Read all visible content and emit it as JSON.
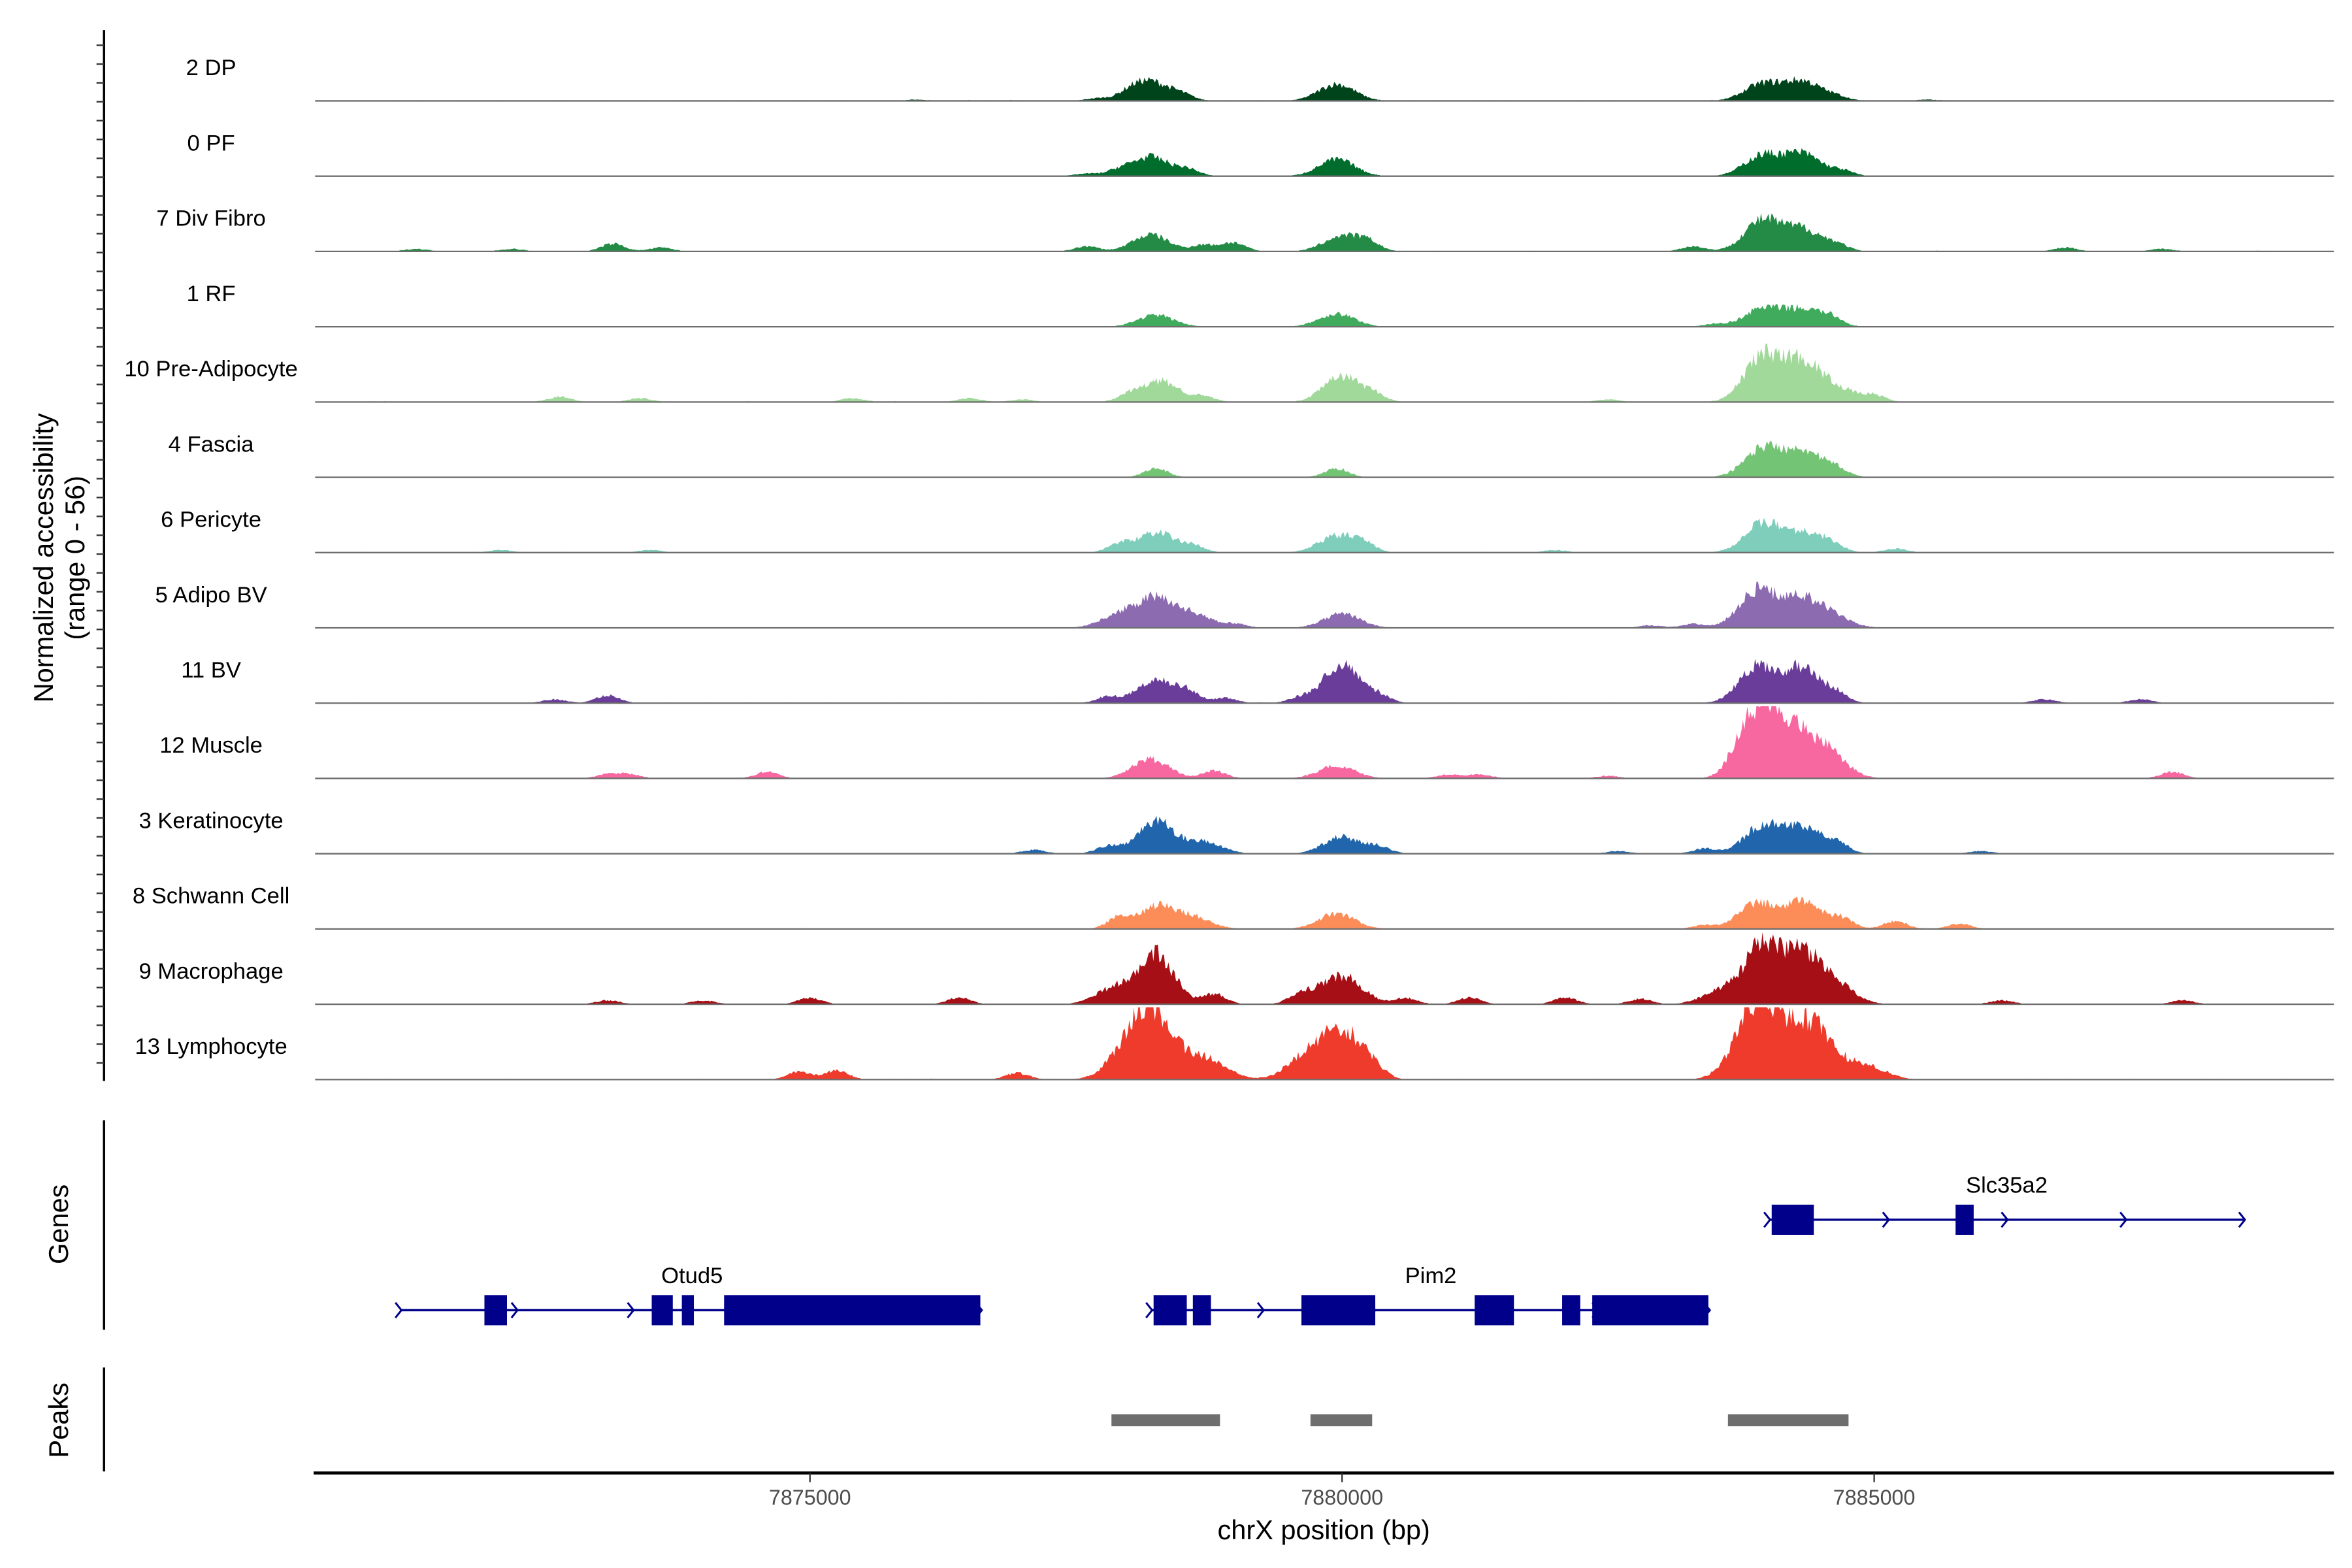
{
  "chart_data": {
    "type": "area",
    "title": "",
    "ylabel": "Normalized accessibility",
    "ylabel2": "(range 0 - 56)",
    "ylim": [
      0,
      56
    ],
    "xlabel": "chrX position (bp)",
    "xlim": [
      7870350,
      7889320
    ],
    "xticks": [
      {
        "value": 7875000,
        "label": "7875000"
      },
      {
        "value": 7880000,
        "label": "7880000"
      },
      {
        "value": 7885000,
        "label": "7885000"
      }
    ],
    "tracks": [
      {
        "name": "2 DP",
        "color": "#00441b",
        "peaks": [
          [
            7878200,
            15
          ],
          [
            7878000,
            4
          ],
          [
            7878500,
            4
          ],
          [
            7879950,
            13
          ],
          [
            7883950,
            13
          ],
          [
            7884330,
            15
          ],
          [
            7884650,
            3
          ],
          [
            7877700,
            2
          ],
          [
            7876000,
            1
          ],
          [
            7885500,
            1
          ]
        ]
      },
      {
        "name": "0 PF",
        "color": "#006d2c",
        "peaks": [
          [
            7878200,
            15
          ],
          [
            7877900,
            4
          ],
          [
            7878550,
            5
          ],
          [
            7879950,
            13
          ],
          [
            7883950,
            16
          ],
          [
            7884330,
            17
          ],
          [
            7884700,
            4
          ],
          [
            7877600,
            2
          ]
        ]
      },
      {
        "name": "7 Div Fibro",
        "color": "#238b45",
        "peaks": [
          [
            7878200,
            13
          ],
          [
            7877600,
            4
          ],
          [
            7878700,
            5
          ],
          [
            7879000,
            4
          ],
          [
            7880000,
            12
          ],
          [
            7880250,
            6
          ],
          [
            7883950,
            24
          ],
          [
            7884330,
            17
          ],
          [
            7884650,
            5
          ],
          [
            7883300,
            4
          ],
          [
            7873150,
            6
          ],
          [
            7873600,
            3
          ],
          [
            7872200,
            2
          ],
          [
            7871300,
            2
          ],
          [
            7878950,
            3
          ],
          [
            7886800,
            3
          ],
          [
            7887700,
            2
          ]
        ]
      },
      {
        "name": "1 RF",
        "color": "#41ab5d",
        "peaks": [
          [
            7878250,
            9
          ],
          [
            7879950,
            10
          ],
          [
            7883950,
            14
          ],
          [
            7884330,
            13
          ],
          [
            7884600,
            6
          ],
          [
            7883500,
            2
          ]
        ]
      },
      {
        "name": "10 Pre-Adipocyte",
        "color": "#a1d99b",
        "peaks": [
          [
            7878300,
            16
          ],
          [
            7878000,
            5
          ],
          [
            7878700,
            4
          ],
          [
            7880000,
            20
          ],
          [
            7880300,
            5
          ],
          [
            7883950,
            35
          ],
          [
            7884320,
            30
          ],
          [
            7884650,
            10
          ],
          [
            7885000,
            5
          ],
          [
            7872650,
            4
          ],
          [
            7873400,
            3
          ],
          [
            7876500,
            3
          ],
          [
            7875400,
            3
          ],
          [
            7882500,
            2
          ],
          [
            7877000,
            2
          ]
        ]
      },
      {
        "name": "4 Fascia",
        "color": "#74c476",
        "peaks": [
          [
            7878250,
            7
          ],
          [
            7879950,
            7
          ],
          [
            7883950,
            22
          ],
          [
            7884330,
            21
          ],
          [
            7884650,
            6
          ]
        ]
      },
      {
        "name": "6 Pericyte",
        "color": "#7fcdbb",
        "peaks": [
          [
            7878250,
            16
          ],
          [
            7877900,
            6
          ],
          [
            7878600,
            5
          ],
          [
            7879950,
            13
          ],
          [
            7880200,
            6
          ],
          [
            7883950,
            22
          ],
          [
            7884330,
            15
          ],
          [
            7884600,
            6
          ],
          [
            7885200,
            3
          ],
          [
            7872100,
            2
          ],
          [
            7873500,
            2
          ],
          [
            7882000,
            2
          ]
        ]
      },
      {
        "name": "5 Adipo BV",
        "color": "#8c6bb1",
        "peaks": [
          [
            7878250,
            22
          ],
          [
            7877900,
            10
          ],
          [
            7878600,
            10
          ],
          [
            7879000,
            3
          ],
          [
            7880000,
            11
          ],
          [
            7883900,
            29
          ],
          [
            7884300,
            22
          ],
          [
            7884600,
            9
          ],
          [
            7883300,
            3
          ],
          [
            7882900,
            2
          ]
        ]
      },
      {
        "name": "11 BV",
        "color": "#6a3d9a",
        "peaks": [
          [
            7878250,
            18
          ],
          [
            7877800,
            5
          ],
          [
            7878550,
            8
          ],
          [
            7878900,
            4
          ],
          [
            7880000,
            31
          ],
          [
            7879600,
            4
          ],
          [
            7880350,
            5
          ],
          [
            7883900,
            28
          ],
          [
            7884320,
            27
          ],
          [
            7884650,
            7
          ],
          [
            7873100,
            6
          ],
          [
            7872600,
            3
          ],
          [
            7886600,
            3
          ],
          [
            7887500,
            3
          ]
        ]
      },
      {
        "name": "12 Muscle",
        "color": "#f768a1",
        "peaks": [
          [
            7878200,
            15
          ],
          [
            7878800,
            6
          ],
          [
            7879950,
            10
          ],
          [
            7883900,
            42
          ],
          [
            7884100,
            30
          ],
          [
            7884370,
            22
          ],
          [
            7884600,
            14
          ],
          [
            7883700,
            6
          ],
          [
            7874600,
            5
          ],
          [
            7873100,
            3
          ],
          [
            7873300,
            3
          ],
          [
            7881000,
            3
          ],
          [
            7881300,
            3
          ],
          [
            7887800,
            5
          ],
          [
            7882500,
            2
          ]
        ]
      },
      {
        "name": "3 Keratinocyte",
        "color": "#2166ac",
        "peaks": [
          [
            7878250,
            25
          ],
          [
            7877800,
            6
          ],
          [
            7878700,
            9
          ],
          [
            7880000,
            13
          ],
          [
            7880350,
            5
          ],
          [
            7883950,
            21
          ],
          [
            7884330,
            21
          ],
          [
            7884650,
            8
          ],
          [
            7883400,
            4
          ],
          [
            7877100,
            3
          ],
          [
            7882600,
            2
          ],
          [
            7886000,
            2
          ]
        ]
      },
      {
        "name": "8 Schwann Cell",
        "color": "#fc8d59",
        "peaks": [
          [
            7878250,
            17
          ],
          [
            7877900,
            8
          ],
          [
            7878600,
            9
          ],
          [
            7879950,
            12
          ],
          [
            7883900,
            20
          ],
          [
            7884330,
            21
          ],
          [
            7884700,
            8
          ],
          [
            7885200,
            6
          ],
          [
            7885800,
            4
          ],
          [
            7883400,
            3
          ]
        ]
      },
      {
        "name": "9 Macrophage",
        "color": "#a50f15",
        "peaks": [
          [
            7878250,
            39
          ],
          [
            7877850,
            12
          ],
          [
            7878800,
            8
          ],
          [
            7879600,
            6
          ],
          [
            7880050,
            17
          ],
          [
            7879850,
            9
          ],
          [
            7883950,
            45
          ],
          [
            7884330,
            37
          ],
          [
            7884650,
            14
          ],
          [
            7883550,
            10
          ],
          [
            7880600,
            5
          ],
          [
            7881200,
            5
          ],
          [
            7882100,
            5
          ],
          [
            7873100,
            3
          ],
          [
            7874000,
            3
          ],
          [
            7875000,
            5
          ],
          [
            7876400,
            5
          ],
          [
            7882800,
            4
          ],
          [
            7886200,
            3
          ],
          [
            7887900,
            3
          ]
        ]
      },
      {
        "name": "13 Lymphocyte",
        "color": "#ef3b2c",
        "peaks": [
          [
            7878200,
            50
          ],
          [
            7877950,
            18
          ],
          [
            7878550,
            14
          ],
          [
            7878800,
            10
          ],
          [
            7880050,
            31
          ],
          [
            7879800,
            18
          ],
          [
            7879600,
            10
          ],
          [
            7880300,
            6
          ],
          [
            7883900,
            40
          ],
          [
            7884100,
            27
          ],
          [
            7884400,
            34
          ],
          [
            7884600,
            12
          ],
          [
            7884950,
            10
          ],
          [
            7883750,
            14
          ],
          [
            7874900,
            6
          ],
          [
            7875250,
            7
          ],
          [
            7876950,
            5
          ]
        ]
      }
    ],
    "genes": [
      {
        "name": "Otud5",
        "row": 2,
        "start": 7871147,
        "end": 7876601,
        "strand": "+",
        "exons": [
          [
            7871941,
            7872153
          ],
          [
            7873513,
            7873711
          ],
          [
            7873796,
            7873909
          ],
          [
            7874193,
            7876601
          ]
        ]
      },
      {
        "name": "Pim2",
        "row": 2,
        "start": 7878201,
        "end": 7883442,
        "strand": "+",
        "exons": [
          [
            7878229,
            7878541
          ],
          [
            7878598,
            7878768
          ],
          [
            7879618,
            7880312
          ],
          [
            7881246,
            7881615
          ],
          [
            7882068,
            7882238
          ],
          [
            7882351,
            7883442
          ]
        ]
      },
      {
        "name": "Slc35a2",
        "row": 1,
        "start": 7884008,
        "end": 7888470,
        "strand": "+",
        "exons": [
          [
            7884037,
            7884433
          ],
          [
            7885765,
            7885935
          ]
        ]
      }
    ],
    "genes_label": "Genes",
    "peaks_label": "Peaks",
    "peak_regions": [
      [
        7877833,
        7878853
      ],
      [
        7879703,
        7880283
      ],
      [
        7883626,
        7884759
      ]
    ],
    "gene_color": "#00008b",
    "peak_color": "#6e6e6e"
  }
}
